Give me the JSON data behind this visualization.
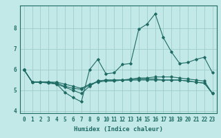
{
  "xlabel": "Humidex (Indice chaleur)",
  "background_color": "#c2e8e8",
  "grid_color": "#a0cccc",
  "line_color": "#1e6b64",
  "xlim": [
    -0.5,
    23.5
  ],
  "ylim": [
    3.9,
    9.1
  ],
  "yticks": [
    4,
    5,
    6,
    7,
    8
  ],
  "xticks": [
    0,
    1,
    2,
    3,
    4,
    5,
    6,
    7,
    8,
    9,
    10,
    11,
    12,
    13,
    14,
    15,
    16,
    17,
    18,
    19,
    20,
    21,
    22,
    23
  ],
  "series": [
    [
      6.0,
      5.4,
      5.4,
      5.4,
      5.3,
      4.9,
      4.65,
      4.45,
      6.0,
      6.5,
      5.8,
      5.85,
      6.25,
      6.3,
      7.95,
      8.2,
      8.7,
      7.55,
      6.85,
      6.3,
      6.35,
      6.5,
      6.6,
      5.85
    ],
    [
      6.0,
      5.4,
      5.4,
      5.35,
      5.3,
      5.15,
      5.0,
      4.85,
      5.2,
      5.45,
      5.5,
      5.5,
      5.5,
      5.5,
      5.55,
      5.55,
      5.55,
      5.5,
      5.5,
      5.5,
      5.45,
      5.4,
      5.35,
      4.85
    ],
    [
      6.0,
      5.4,
      5.4,
      5.4,
      5.35,
      5.2,
      5.1,
      5.05,
      5.25,
      5.45,
      5.5,
      5.5,
      5.5,
      5.5,
      5.5,
      5.5,
      5.5,
      5.5,
      5.5,
      5.5,
      5.45,
      5.4,
      5.35,
      4.85
    ],
    [
      6.0,
      5.4,
      5.4,
      5.4,
      5.4,
      5.3,
      5.2,
      5.1,
      5.3,
      5.4,
      5.45,
      5.45,
      5.5,
      5.55,
      5.6,
      5.6,
      5.65,
      5.65,
      5.65,
      5.6,
      5.55,
      5.5,
      5.45,
      4.85
    ]
  ]
}
